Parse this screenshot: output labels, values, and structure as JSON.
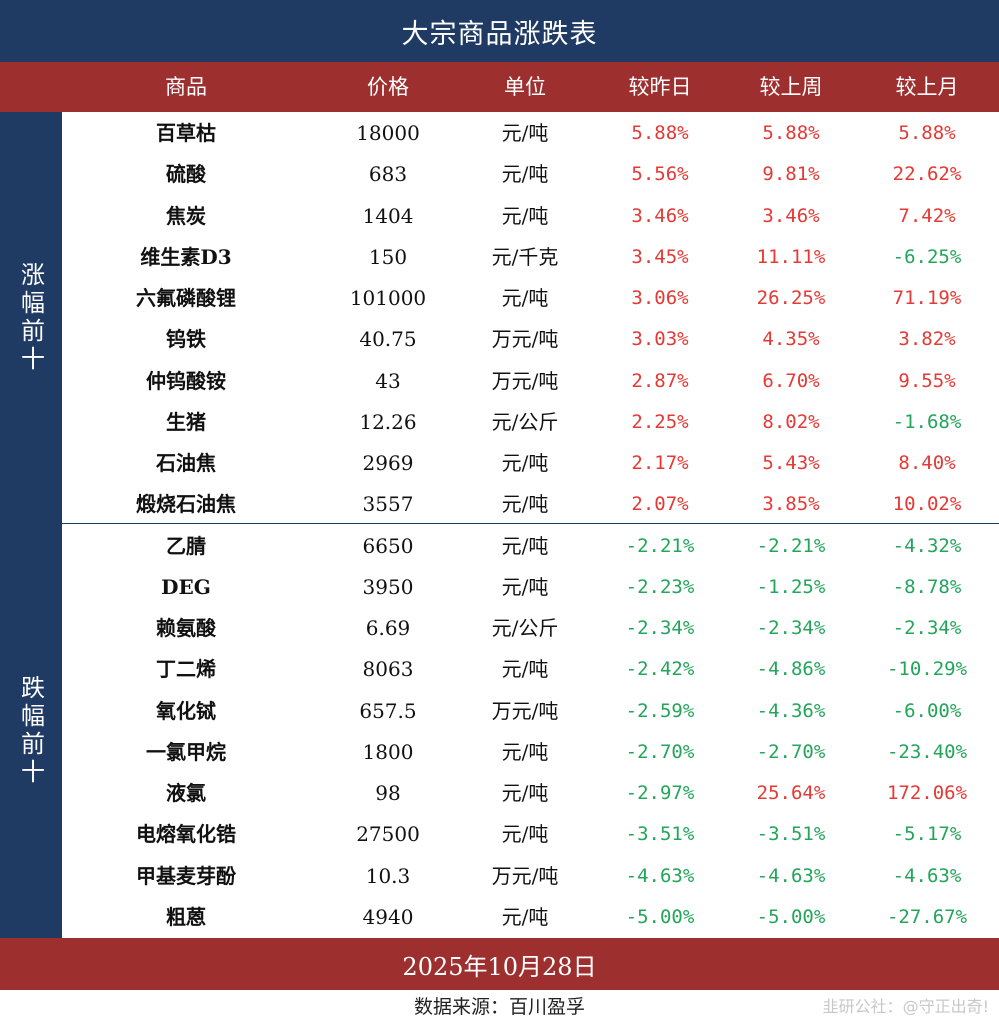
{
  "title": "大宗商品涨跌表",
  "headers": {
    "name": "商品",
    "price": "价格",
    "unit": "单位",
    "day": "较昨日",
    "week": "较上周",
    "month": "较上月"
  },
  "side_labels": {
    "gainers": "涨幅前十",
    "losers": "跌幅前十"
  },
  "rows": [
    {
      "name": "百草枯",
      "price": "18000",
      "unit": "元/吨",
      "day": "5.88%",
      "week": "5.88%",
      "month": "5.88%"
    },
    {
      "name": "硫酸",
      "price": "683",
      "unit": "元/吨",
      "day": "5.56%",
      "week": "9.81%",
      "month": "22.62%"
    },
    {
      "name": "焦炭",
      "price": "1404",
      "unit": "元/吨",
      "day": "3.46%",
      "week": "3.46%",
      "month": "7.42%"
    },
    {
      "name": "维生素D3",
      "price": "150",
      "unit": "元/千克",
      "day": "3.45%",
      "week": "11.11%",
      "month": "-6.25%"
    },
    {
      "name": "六氟磷酸锂",
      "price": "101000",
      "unit": "元/吨",
      "day": "3.06%",
      "week": "26.25%",
      "month": "71.19%"
    },
    {
      "name": "钨铁",
      "price": "40.75",
      "unit": "万元/吨",
      "day": "3.03%",
      "week": "4.35%",
      "month": "3.82%"
    },
    {
      "name": "仲钨酸铵",
      "price": "43",
      "unit": "万元/吨",
      "day": "2.87%",
      "week": "6.70%",
      "month": "9.55%"
    },
    {
      "name": "生猪",
      "price": "12.26",
      "unit": "元/公斤",
      "day": "2.25%",
      "week": "8.02%",
      "month": "-1.68%"
    },
    {
      "name": "石油焦",
      "price": "2969",
      "unit": "元/吨",
      "day": "2.17%",
      "week": "5.43%",
      "month": "8.40%"
    },
    {
      "name": "煅烧石油焦",
      "price": "3557",
      "unit": "元/吨",
      "day": "2.07%",
      "week": "3.85%",
      "month": "10.02%"
    },
    {
      "name": "乙腈",
      "price": "6650",
      "unit": "元/吨",
      "day": "-2.21%",
      "week": "-2.21%",
      "month": "-4.32%"
    },
    {
      "name": "DEG",
      "price": "3950",
      "unit": "元/吨",
      "day": "-2.23%",
      "week": "-1.25%",
      "month": "-8.78%"
    },
    {
      "name": "赖氨酸",
      "price": "6.69",
      "unit": "元/公斤",
      "day": "-2.34%",
      "week": "-2.34%",
      "month": "-2.34%"
    },
    {
      "name": "丁二烯",
      "price": "8063",
      "unit": "元/吨",
      "day": "-2.42%",
      "week": "-4.86%",
      "month": "-10.29%"
    },
    {
      "name": "氧化铽",
      "price": "657.5",
      "unit": "万元/吨",
      "day": "-2.59%",
      "week": "-4.36%",
      "month": "-6.00%"
    },
    {
      "name": "一氯甲烷",
      "price": "1800",
      "unit": "元/吨",
      "day": "-2.70%",
      "week": "-2.70%",
      "month": "-23.40%"
    },
    {
      "name": "液氯",
      "price": "98",
      "unit": "元/吨",
      "day": "-2.97%",
      "week": "25.64%",
      "month": "172.06%"
    },
    {
      "name": "电熔氧化锆",
      "price": "27500",
      "unit": "元/吨",
      "day": "-3.51%",
      "week": "-3.51%",
      "month": "-5.17%"
    },
    {
      "name": "甲基麦芽酚",
      "price": "10.3",
      "unit": "万元/吨",
      "day": "-4.63%",
      "week": "-4.63%",
      "month": "-4.63%"
    },
    {
      "name": "粗蒽",
      "price": "4940",
      "unit": "元/吨",
      "day": "-5.00%",
      "week": "-5.00%",
      "month": "-27.67%"
    }
  ],
  "date": "2025年10月28日",
  "source": "数据来源：百川盈孚",
  "credit": "韭研公社：@守正出奇!",
  "colors": {
    "navy": "#1f3a63",
    "red_bar": "#9e2f2f",
    "positive": "#e53935",
    "negative": "#23a55a"
  }
}
